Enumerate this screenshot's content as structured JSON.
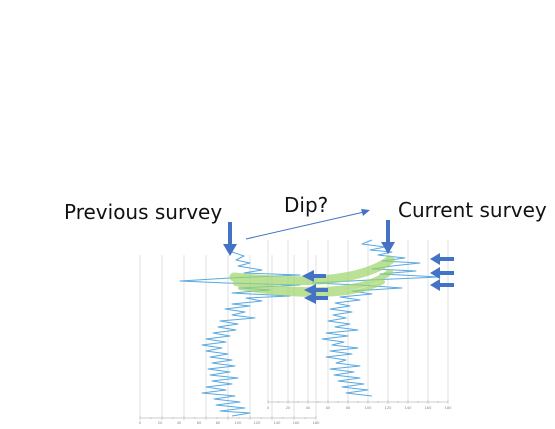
{
  "labels": {
    "previous": "Previous survey",
    "dip": "Dip?",
    "current": "Current survey"
  },
  "colors": {
    "log_line": "#5aa9e0",
    "arrow": "#4472c4",
    "highlight": "#9ed56b",
    "grid": "#d8d8d8",
    "text": "#111111"
  },
  "left_axis_ticks": [
    "0",
    "20",
    "40",
    "60",
    "80",
    "100",
    "120",
    "140",
    "160",
    "180"
  ],
  "right_axis_ticks": [
    "0",
    "20",
    "40",
    "60",
    "80",
    "100",
    "120",
    "140",
    "160",
    "180"
  ]
}
